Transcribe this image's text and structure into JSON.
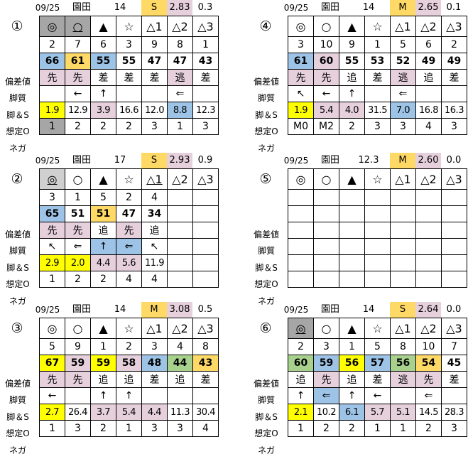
{
  "colors": {
    "dg": "#a6a6a6",
    "lg": "#d0d0d0",
    "b": "#9dc3e6",
    "o": "#ffd966",
    "p": "#e6d0dc",
    "y": "#ffff00",
    "g": "#a9d18e",
    "": "transparent"
  },
  "row_labels": [
    "偏差値",
    "脚質",
    "脚＆S",
    "想定O",
    "ネガ"
  ],
  "marks": [
    "◎",
    "○",
    "▲",
    "☆",
    "△1",
    "△2",
    "△3"
  ],
  "panels": [
    {
      "id": "①",
      "date": "09/25",
      "venue": "園田",
      "n": "14",
      "track": "S",
      "v": "2.83",
      "d": "0.3",
      "mark_bg": [
        "dg",
        "dg",
        "",
        "",
        "",
        "",
        ""
      ],
      "mark_underline": [
        false,
        true,
        false,
        false,
        false,
        false,
        false
      ],
      "nums": [
        "2",
        "7",
        "6",
        "3",
        "9",
        "8",
        "1"
      ],
      "dev": [
        "66",
        "61",
        "55",
        "55",
        "47",
        "47",
        "43"
      ],
      "dev_bg": [
        "b",
        "o",
        "b",
        "",
        "",
        "",
        ""
      ],
      "style": [
        "先",
        "先",
        "差",
        "差",
        "差",
        "逃",
        "差"
      ],
      "style_bg": [
        "p",
        "p",
        "",
        "",
        "",
        "p",
        ""
      ],
      "arrows": [
        "",
        "←",
        "↑",
        "",
        "",
        "⇐",
        ""
      ],
      "arrows_bg": [
        "",
        "",
        "",
        "",
        "",
        "",
        ""
      ],
      "odds": [
        "1.9",
        "12.9",
        "3.9",
        "16.6",
        "12.0",
        "8.8",
        "12.3"
      ],
      "odds_bg": [
        "y",
        "",
        "p",
        "",
        "",
        "b",
        ""
      ],
      "nega": [
        "1",
        "2",
        "2",
        "2",
        "3",
        "1",
        "3"
      ],
      "nega_bg": [
        "dg",
        "",
        "",
        "",
        "",
        "",
        ""
      ]
    },
    {
      "id": "②",
      "date": "09/25",
      "venue": "園田",
      "n": "17",
      "track": "S",
      "v": "2.93",
      "d": "0.9",
      "mark_bg": [
        "lg",
        "",
        "",
        "",
        "",
        "",
        ""
      ],
      "mark_underline": [
        true,
        false,
        false,
        false,
        true,
        false,
        false
      ],
      "nums": [
        "3",
        "1",
        "5",
        "2",
        "4",
        "",
        ""
      ],
      "dev": [
        "65",
        "51",
        "51",
        "47",
        "34",
        "",
        ""
      ],
      "dev_bg": [
        "b",
        "",
        "o",
        "",
        "",
        "",
        ""
      ],
      "style": [
        "先",
        "先",
        "追",
        "先",
        "追",
        "",
        ""
      ],
      "style_bg": [
        "p",
        "p",
        "",
        "p",
        "",
        "",
        ""
      ],
      "arrows": [
        "↖",
        "⇐",
        "↑",
        "⇐",
        "↖",
        "",
        ""
      ],
      "arrows_bg": [
        "",
        "",
        "b",
        "b",
        "",
        "",
        ""
      ],
      "odds": [
        "2.9",
        "2.0",
        "4.4",
        "5.6",
        "11.9",
        "",
        ""
      ],
      "odds_bg": [
        "y",
        "y",
        "p",
        "p",
        "",
        "",
        ""
      ],
      "nega": [
        "1",
        "2",
        "2",
        "4",
        "4",
        "",
        ""
      ],
      "nega_bg": [
        "",
        "",
        "",
        "",
        "",
        "",
        ""
      ]
    },
    {
      "id": "③",
      "date": "09/25",
      "venue": "園田",
      "n": "14",
      "track": "M",
      "v": "3.08",
      "d": "0.5",
      "mark_bg": [
        "",
        "",
        "",
        "",
        "",
        "",
        ""
      ],
      "mark_underline": [
        false,
        false,
        false,
        false,
        false,
        false,
        false
      ],
      "nums": [
        "5",
        "9",
        "1",
        "2",
        "3",
        "4",
        "8"
      ],
      "dev": [
        "67",
        "59",
        "59",
        "58",
        "48",
        "44",
        "43"
      ],
      "dev_bg": [
        "y",
        "p",
        "y",
        "p",
        "b",
        "g",
        "o"
      ],
      "style": [
        "先",
        "先",
        "追",
        "追",
        "差",
        "追",
        "差"
      ],
      "style_bg": [
        "p",
        "p",
        "",
        "",
        "",
        "",
        ""
      ],
      "arrows": [
        "←",
        "",
        "↑",
        "↑",
        "",
        "",
        ""
      ],
      "arrows_bg": [
        "",
        "",
        "",
        "",
        "",
        "",
        ""
      ],
      "odds": [
        "2.7",
        "26.4",
        "3.7",
        "5.4",
        "4.4",
        "11.3",
        "30.4"
      ],
      "odds_bg": [
        "y",
        "",
        "p",
        "p",
        "p",
        "",
        ""
      ],
      "nega": [
        "1",
        "3",
        "2",
        "1",
        "3",
        "3",
        "4"
      ],
      "nega_bg": [
        "",
        "",
        "",
        "",
        "",
        "",
        ""
      ]
    },
    {
      "id": "④",
      "date": "09/25",
      "venue": "園田",
      "n": "14",
      "track": "M",
      "v": "2.65",
      "d": "0.1",
      "mark_bg": [
        "",
        "",
        "",
        "",
        "",
        "",
        ""
      ],
      "mark_underline": [
        false,
        false,
        false,
        false,
        false,
        false,
        false
      ],
      "nums": [
        "3",
        "10",
        "9",
        "1",
        "5",
        "6",
        "2"
      ],
      "dev": [
        "61",
        "60",
        "55",
        "53",
        "52",
        "49",
        "49"
      ],
      "dev_bg": [
        "b",
        "p",
        "",
        "",
        "",
        "",
        ""
      ],
      "style": [
        "先",
        "先",
        "追",
        "差",
        "逃",
        "追",
        "差"
      ],
      "style_bg": [
        "p",
        "p",
        "",
        "",
        "p",
        "",
        ""
      ],
      "arrows": [
        "↖",
        "←",
        "↑",
        "",
        "⇐",
        "",
        ""
      ],
      "arrows_bg": [
        "",
        "",
        "",
        "",
        "",
        "",
        ""
      ],
      "odds": [
        "1.9",
        "5.4",
        "4.0",
        "31.5",
        "7.0",
        "16.8",
        "16.3"
      ],
      "odds_bg": [
        "y",
        "p",
        "p",
        "",
        "b",
        "",
        ""
      ],
      "nega": [
        "M0",
        "M2",
        "2",
        "3",
        "3",
        "4",
        "3"
      ],
      "nega_bg": [
        "",
        "",
        "",
        "",
        "",
        "",
        ""
      ]
    },
    {
      "id": "⑤",
      "date": "09/25",
      "venue": "園田",
      "n": "12.3",
      "track": "M",
      "v": "2.60",
      "d": "0.0",
      "mark_bg": [
        "",
        "",
        "",
        "",
        "",
        "",
        ""
      ],
      "mark_underline": [
        false,
        false,
        false,
        false,
        false,
        false,
        false
      ],
      "nums": [
        "",
        "",
        "",
        "",
        "",
        "",
        ""
      ],
      "dev": [
        "",
        "",
        "",
        "",
        "",
        "",
        ""
      ],
      "dev_bg": [
        "",
        "",
        "",
        "",
        "",
        "",
        ""
      ],
      "style": [
        "",
        "",
        "",
        "",
        "",
        "",
        ""
      ],
      "style_bg": [
        "",
        "",
        "",
        "",
        "",
        "",
        ""
      ],
      "arrows": [
        "",
        "",
        "",
        "",
        "",
        "",
        ""
      ],
      "arrows_bg": [
        "",
        "",
        "",
        "",
        "",
        "",
        ""
      ],
      "odds": [
        "",
        "",
        "",
        "",
        "",
        "",
        ""
      ],
      "odds_bg": [
        "",
        "",
        "",
        "",
        "",
        "",
        ""
      ],
      "nega": [
        "",
        "",
        "",
        "",
        "",
        "",
        ""
      ],
      "nega_bg": [
        "",
        "",
        "",
        "",
        "",
        "",
        ""
      ]
    },
    {
      "id": "⑥",
      "date": "09/25",
      "venue": "園田",
      "n": "14",
      "track": "S",
      "v": "2.64",
      "d": "0.0",
      "mark_bg": [
        "dg",
        "",
        "",
        "",
        "",
        "",
        ""
      ],
      "mark_underline": [
        true,
        false,
        false,
        false,
        false,
        false,
        false
      ],
      "nums": [
        "2",
        "3",
        "1",
        "5",
        "8",
        "10",
        "7"
      ],
      "dev": [
        "60",
        "59",
        "56",
        "57",
        "56",
        "54",
        "45"
      ],
      "dev_bg": [
        "g",
        "b",
        "y",
        "b",
        "g",
        "o",
        ""
      ],
      "style": [
        "追",
        "先",
        "追",
        "差",
        "逃",
        "先",
        "差"
      ],
      "style_bg": [
        "",
        "p",
        "",
        "",
        "p",
        "p",
        ""
      ],
      "arrows": [
        "↑",
        "⇐",
        "↑",
        "←",
        "",
        "⇐",
        ""
      ],
      "arrows_bg": [
        "",
        "b",
        "",
        "",
        "",
        "",
        ""
      ],
      "odds": [
        "2.1",
        "10.2",
        "6.1",
        "5.7",
        "5.1",
        "14.5",
        "28.3"
      ],
      "odds_bg": [
        "y",
        "",
        "b",
        "p",
        "p",
        "",
        ""
      ],
      "nega": [
        "1",
        "2",
        "2",
        "1",
        "1",
        "2",
        "3"
      ],
      "nega_bg": [
        "",
        "",
        "",
        "",
        "",
        "",
        ""
      ]
    }
  ]
}
